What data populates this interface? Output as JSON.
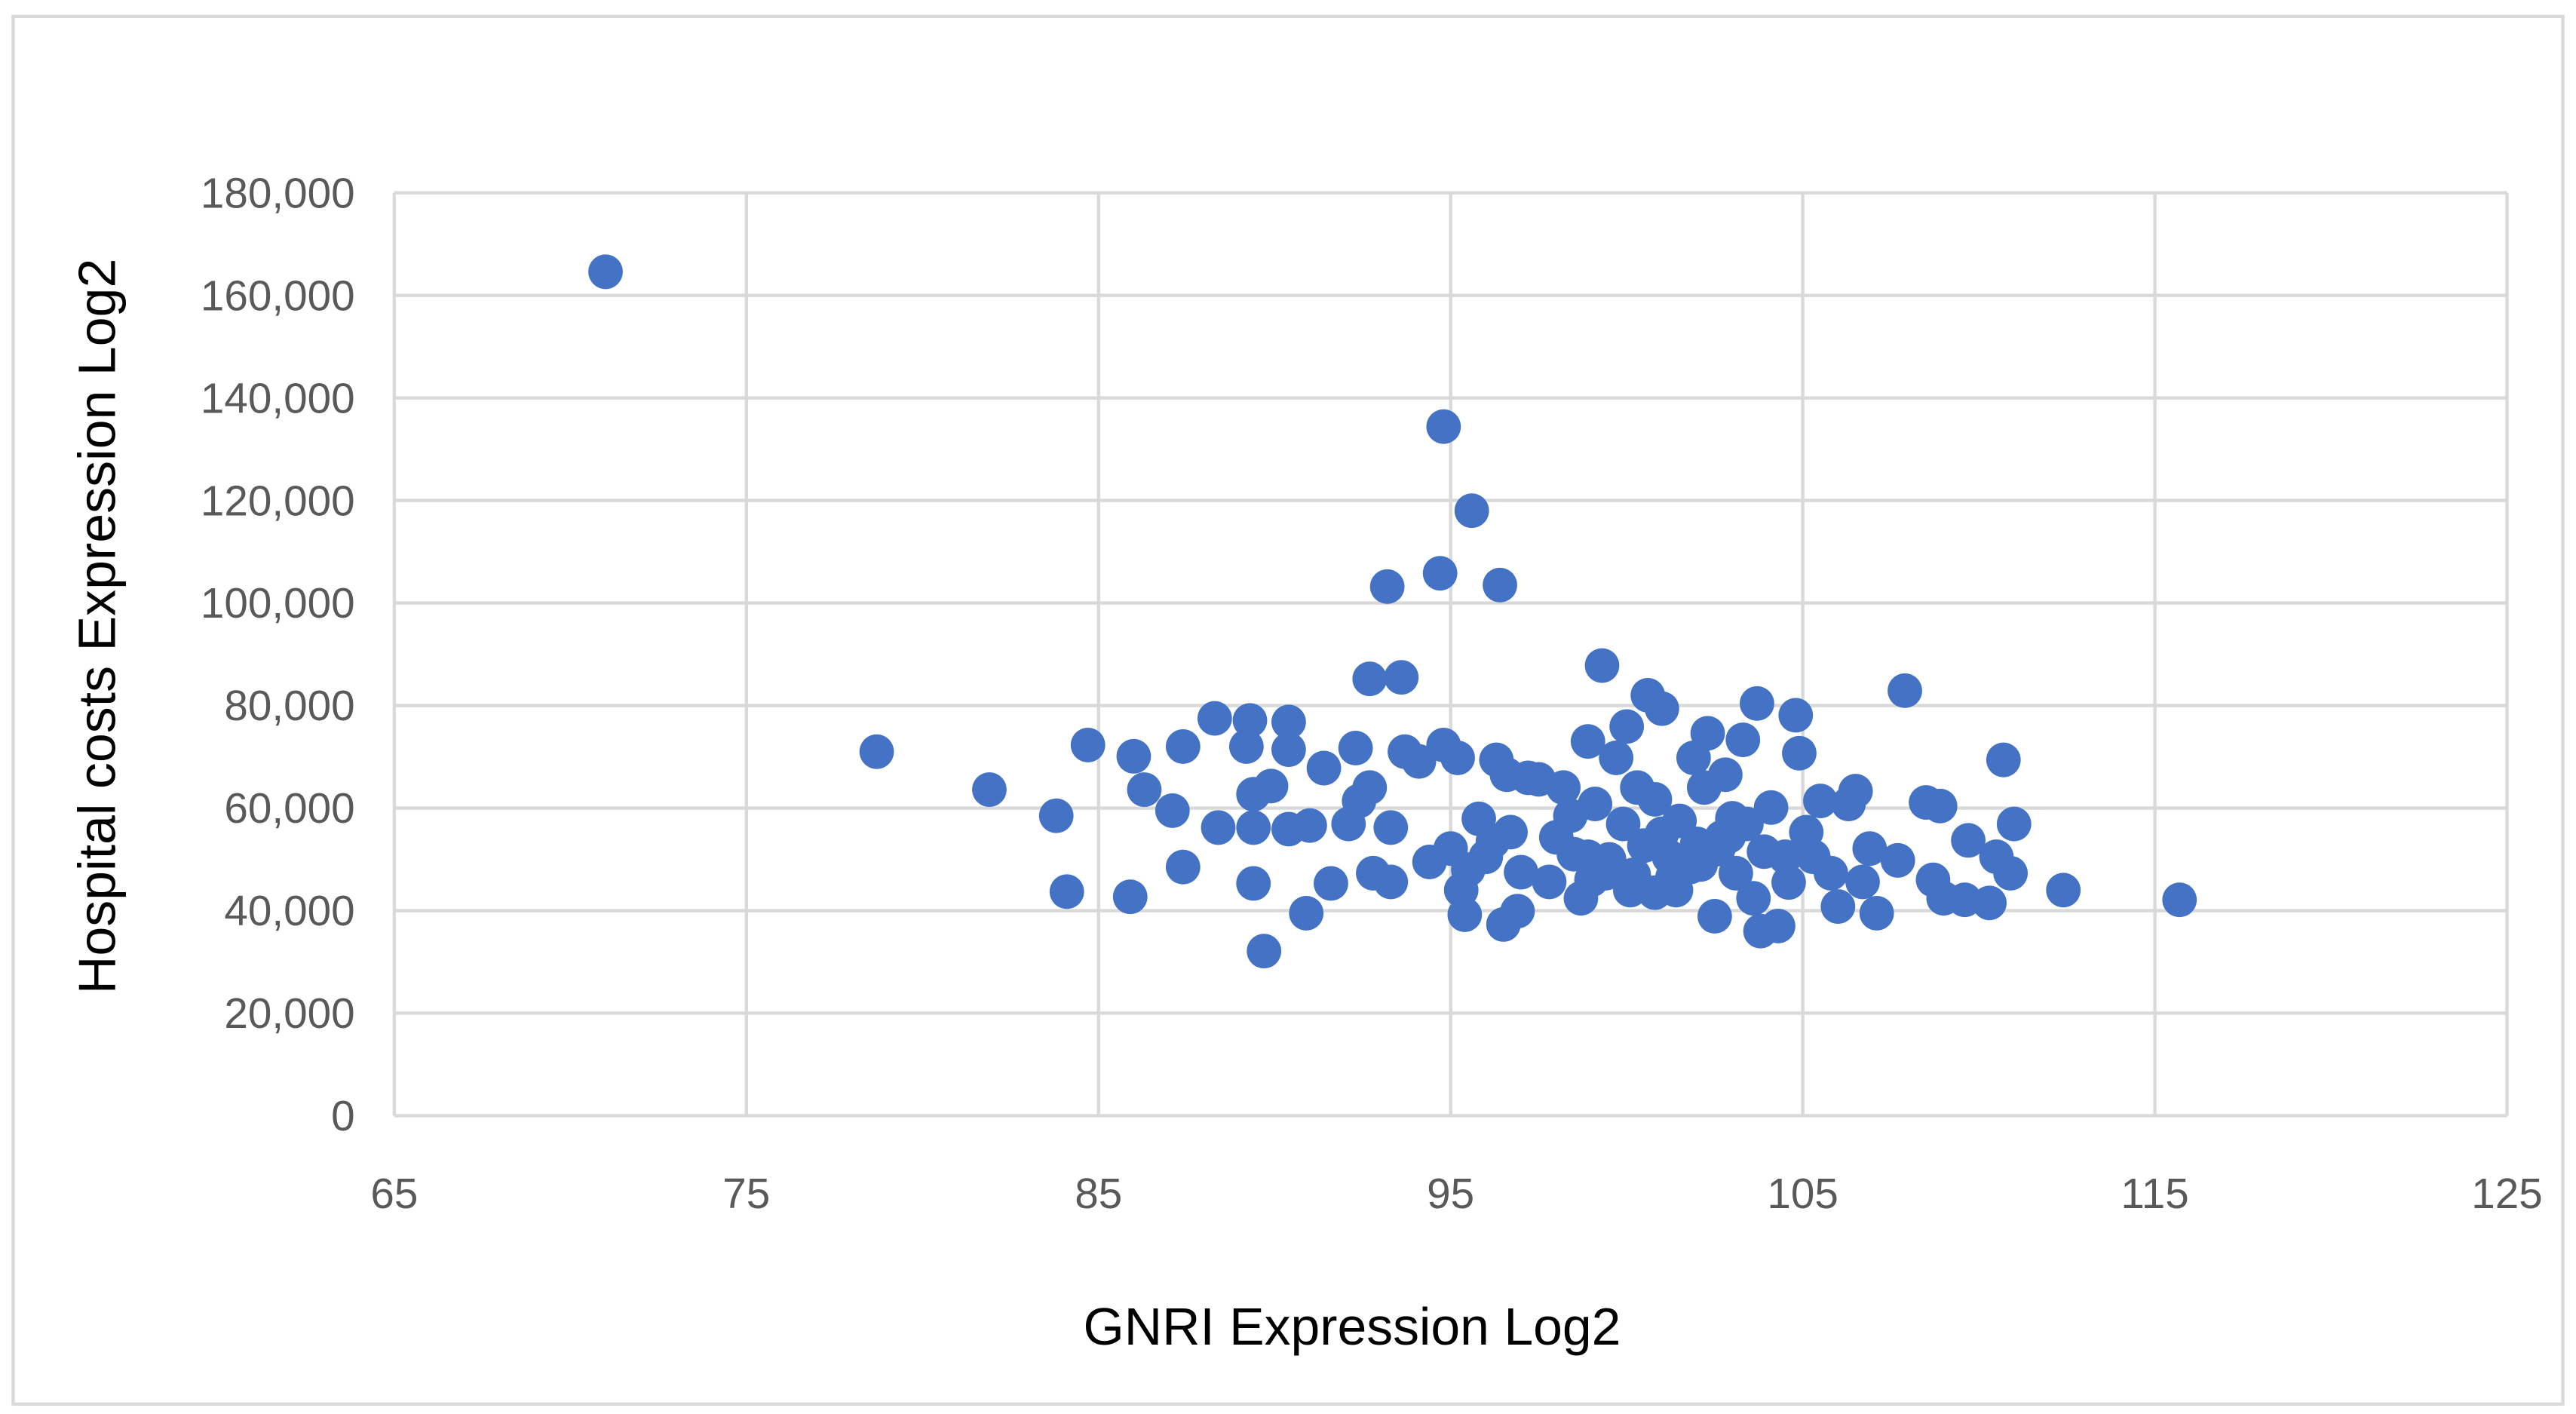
{
  "chart_data": {
    "type": "scatter",
    "x_label": "GNRI Expression Log2",
    "y_label": "Hospital costs Expression Log2",
    "color": "#4472c4",
    "grid": true,
    "xlim": [
      65,
      125
    ],
    "xticks": [
      65,
      75,
      85,
      95,
      105,
      115,
      125
    ],
    "ylim": [
      0,
      180000
    ],
    "yticks": [
      0,
      {
        "value": 20000,
        "label": "20,000"
      },
      {
        "value": 40000,
        "label": "40,000"
      },
      {
        "value": 60000,
        "label": "60,000"
      },
      {
        "value": 80000,
        "label": "80,000"
      },
      {
        "value": 100000,
        "label": "100,000"
      },
      {
        "value": 120000,
        "label": "120,000"
      },
      {
        "value": 140000,
        "label": "140,000"
      },
      {
        "value": 160000,
        "label": "160,000"
      },
      {
        "value": 180000,
        "label": "180,000"
      }
    ],
    "x": [
      71.0,
      78.7,
      81.9,
      83.8,
      84.1,
      84.7,
      85.9,
      86.0,
      86.3,
      87.1,
      87.4,
      87.4,
      88.3,
      88.4,
      89.2,
      89.3,
      89.4,
      89.4,
      89.4,
      89.9,
      89.7,
      90.4,
      90.4,
      90.4,
      90.9,
      91.0,
      91.4,
      91.6,
      92.1,
      92.3,
      92.4,
      92.7,
      92.7,
      92.8,
      93.2,
      93.3,
      93.3,
      93.6,
      93.7,
      94.1,
      94.4,
      94.7,
      94.8,
      94.8,
      95.0,
      95.2,
      95.3,
      95.4,
      95.6,
      95.8,
      96.0,
      96.3,
      96.4,
      96.5,
      96.6,
      96.7,
      96.9,
      97.2,
      97.5,
      97.8,
      98.0,
      98.2,
      98.4,
      98.7,
      98.9,
      98.9,
      99.1,
      99.3,
      99.4,
      99.7,
      99.9,
      100.0,
      100.1,
      100.3,
      100.5,
      100.6,
      100.8,
      101.0,
      101.2,
      101.4,
      101.5,
      101.9,
      102.0,
      102.2,
      102.3,
      102.5,
      102.7,
      102.8,
      103.1,
      103.3,
      103.4,
      103.6,
      103.7,
      103.8,
      104.1,
      104.3,
      104.5,
      104.8,
      104.9,
      105.1,
      105.5,
      105.8,
      106.0,
      106.3,
      106.5,
      106.7,
      106.9,
      107.1,
      107.7,
      107.9,
      108.5,
      108.7,
      108.9,
      109.0,
      109.6,
      109.7,
      110.3,
      110.5,
      110.7,
      110.9,
      111.0,
      112.4,
      115.7,
      99.5,
      100.2,
      101.0,
      101.8,
      102.6,
      103.0,
      99.0,
      100.8,
      102.1,
      103.9,
      104.6,
      95.5,
      96.2,
      97.0,
      98.5,
      101.3,
      102.9,
      105.3
    ],
    "values": [
      164600,
      71000,
      63600,
      58500,
      43700,
      72300,
      42700,
      70100,
      63600,
      59500,
      48500,
      72000,
      77500,
      56200,
      72000,
      77100,
      45300,
      56200,
      62700,
      64300,
      32100,
      76800,
      71400,
      55900,
      39500,
      56600,
      67800,
      45300,
      56900,
      71700,
      61400,
      64000,
      85200,
      47300,
      103200,
      56200,
      45600,
      85500,
      71000,
      69100,
      49500,
      105800,
      134400,
      72300,
      52100,
      69800,
      44000,
      39200,
      118000,
      57900,
      50500,
      69400,
      103500,
      37300,
      66500,
      55300,
      39900,
      65900,
      65600,
      45600,
      54300,
      64000,
      58500,
      42400,
      73000,
      50500,
      60800,
      87800,
      47300,
      69800,
      56900,
      75900,
      44000,
      64000,
      52700,
      82000,
      61700,
      79400,
      50500,
      44000,
      57500,
      69800,
      53000,
      64000,
      74600,
      38900,
      54300,
      66500,
      47300,
      73300,
      56900,
      42400,
      80400,
      36000,
      60100,
      37000,
      50500,
      78100,
      70700,
      55300,
      61400,
      47300,
      40800,
      60800,
      63300,
      45600,
      52100,
      39500,
      49800,
      82900,
      61100,
      46000,
      60400,
      42400,
      42100,
      53700,
      41500,
      50500,
      69400,
      47300,
      56900,
      44000,
      42100,
      50000,
      47000,
      55000,
      48500,
      52000,
      58000,
      46000,
      43500,
      49000,
      51500,
      45500,
      48000,
      53500,
      47500,
      51000,
      46500,
      54500,
      50500
    ]
  }
}
